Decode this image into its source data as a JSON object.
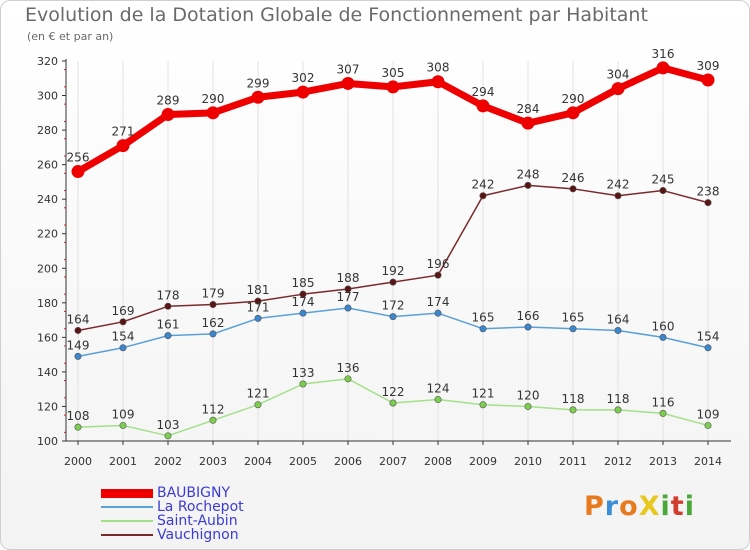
{
  "title": "Evolution de la Dotation Globale de Fonctionnement par Habitant",
  "subtitle": "(en € et par an)",
  "logo": {
    "text": "ProXiti",
    "letters": [
      "P",
      "r",
      "o",
      "X",
      "i",
      "t",
      "i"
    ],
    "colors": [
      "#e87a1e",
      "#3a8fd6",
      "#e87a1e",
      "#e8c81e",
      "#4aa83a",
      "#d23c2c",
      "#4aa83a"
    ]
  },
  "chart_data": {
    "type": "line",
    "title": "Evolution de la Dotation Globale de Fonctionnement par Habitant",
    "subtitle": "(en € et par an)",
    "xlabel": "",
    "ylabel": "",
    "ylim": [
      100,
      320
    ],
    "yticks": [
      100,
      120,
      140,
      160,
      180,
      200,
      220,
      240,
      260,
      280,
      300,
      320
    ],
    "grid": "vertical",
    "legend": "bottom-left",
    "categories": [
      "2000",
      "2001",
      "2002",
      "2003",
      "2004",
      "2005",
      "2006",
      "2007",
      "2008",
      "2009",
      "2010",
      "2011",
      "2012",
      "2013",
      "2014"
    ],
    "series": [
      {
        "name": "Vauchignon",
        "color": "#7a2a2a",
        "marker": "#5a1414",
        "values": [
          164,
          169,
          178,
          179,
          181,
          185,
          188,
          192,
          196,
          242,
          248,
          246,
          242,
          245,
          238
        ]
      },
      {
        "name": "La Rochepot",
        "color": "#5aa0d8",
        "marker": "#3a86cf",
        "values": [
          149,
          154,
          161,
          162,
          171,
          174,
          177,
          172,
          174,
          165,
          166,
          165,
          164,
          160,
          154
        ]
      },
      {
        "name": "Saint-Aubin",
        "color": "#a4e08a",
        "marker": "#7ccf4e",
        "values": [
          108,
          109,
          103,
          112,
          121,
          133,
          136,
          122,
          124,
          121,
          120,
          118,
          118,
          116,
          109
        ]
      },
      {
        "name": "BAUBIGNY",
        "color": "#ee0000",
        "marker": "#ee0000",
        "values": [
          256,
          271,
          289,
          290,
          299,
          302,
          307,
          305,
          308,
          294,
          284,
          290,
          304,
          316,
          309
        ]
      }
    ],
    "legend_order": [
      "BAUBIGNY",
      "La Rochepot",
      "Saint-Aubin",
      "Vauchignon"
    ]
  }
}
